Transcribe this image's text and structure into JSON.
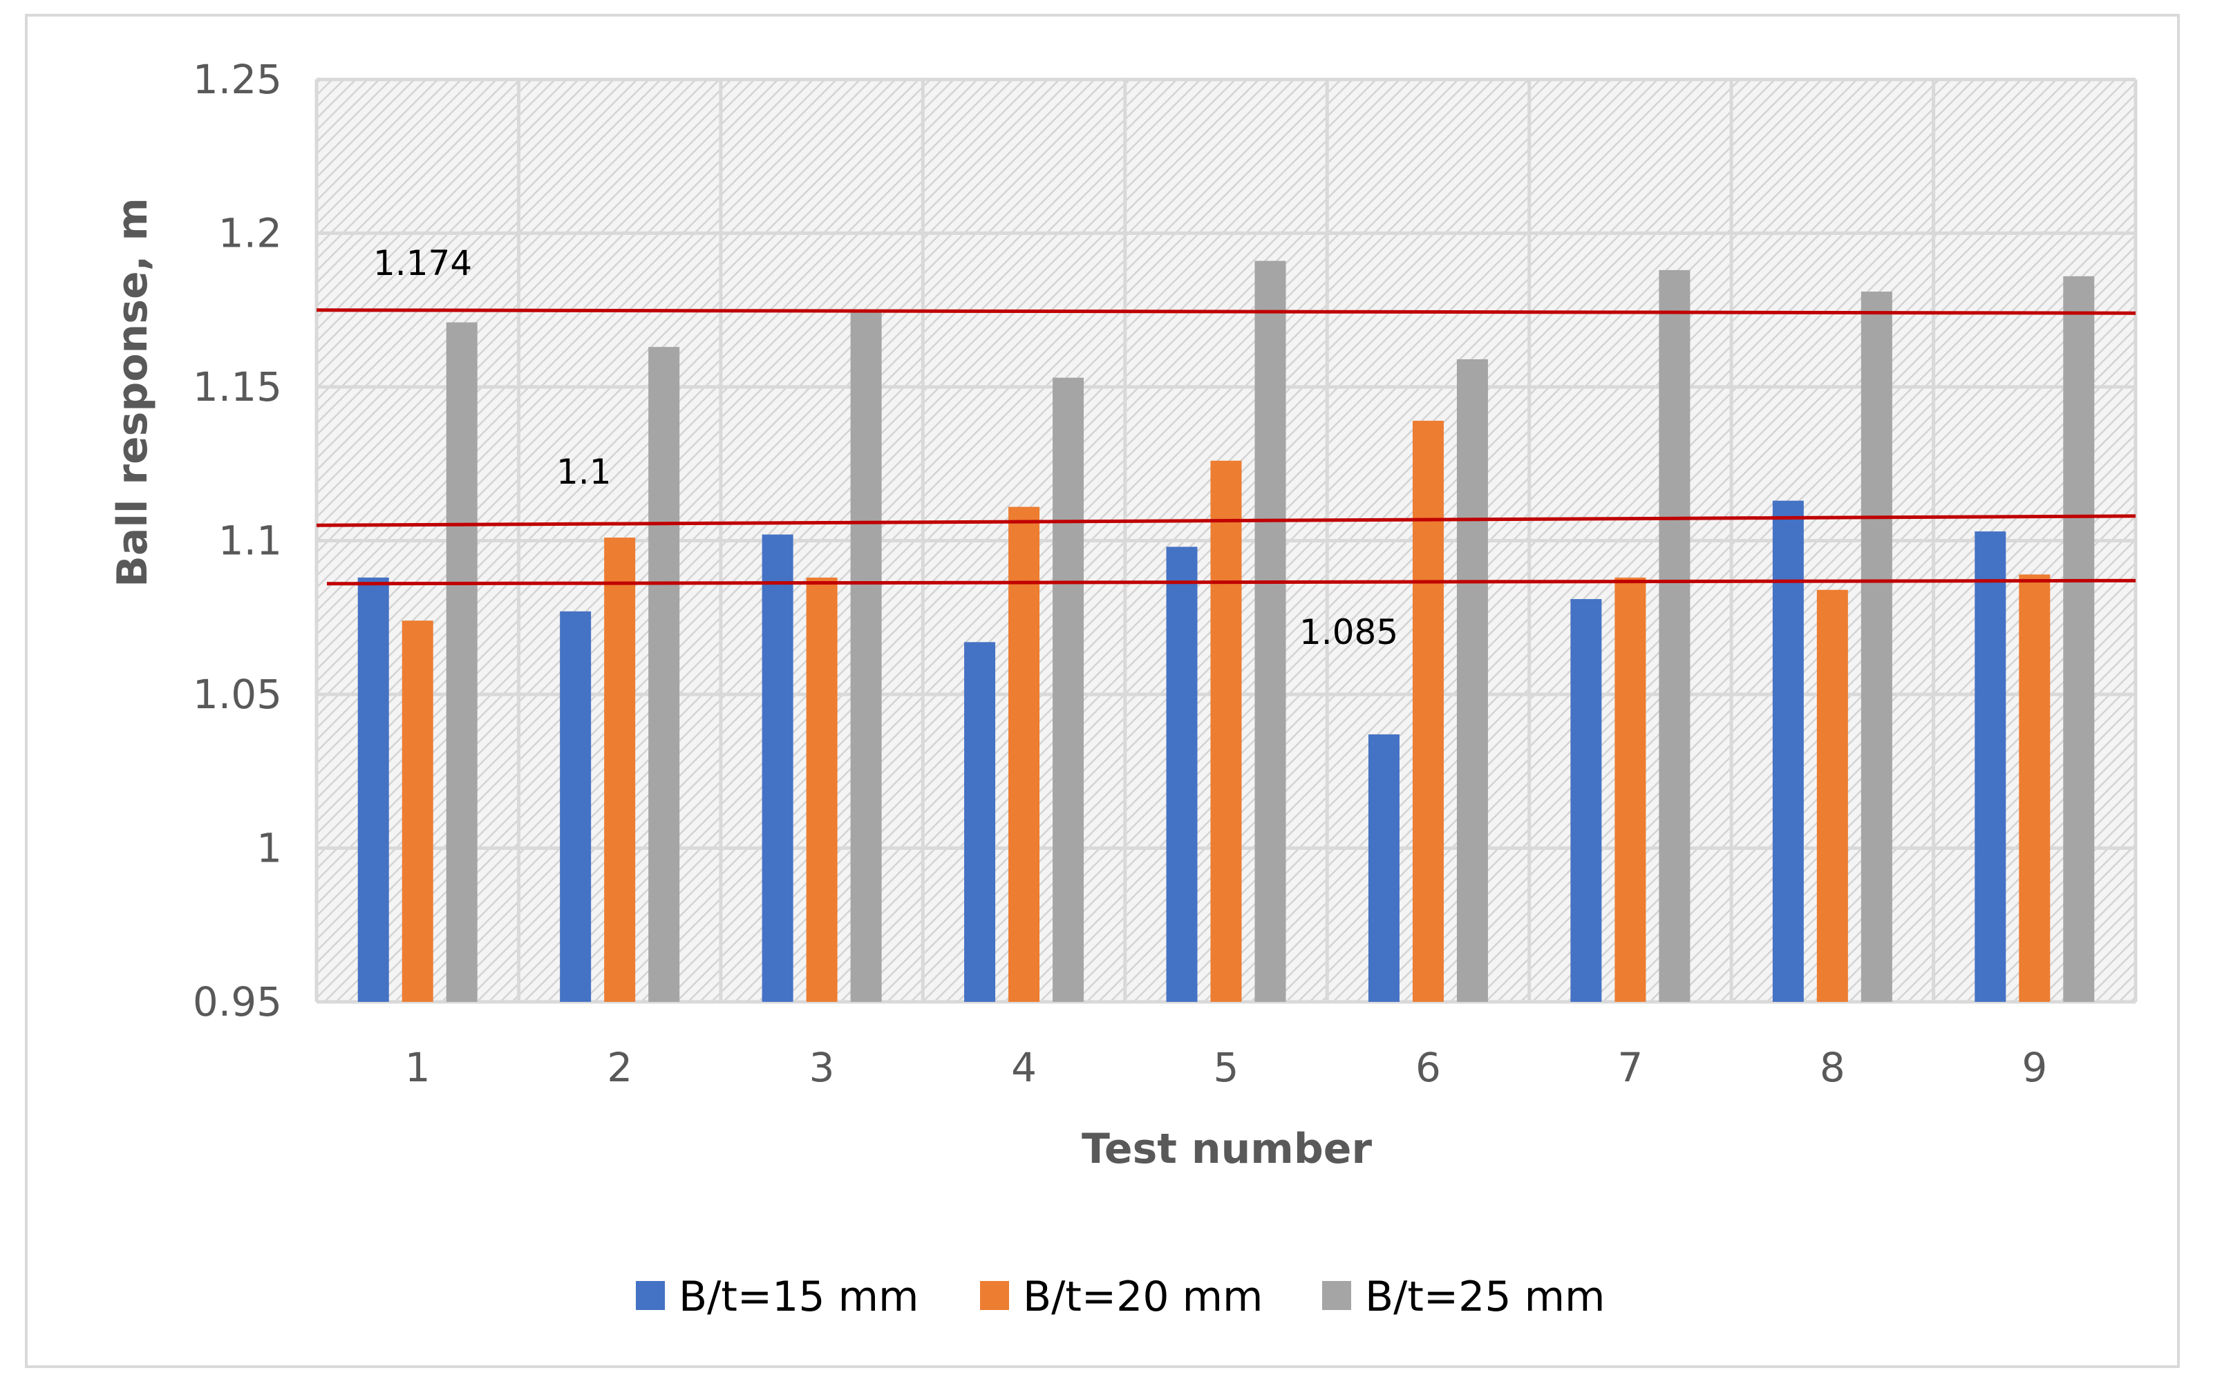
{
  "chart_data": {
    "type": "bar",
    "title": "",
    "xlabel": "Test number",
    "ylabel": "Ball response, m",
    "categories": [
      "1",
      "2",
      "3",
      "4",
      "5",
      "6",
      "7",
      "8",
      "9"
    ],
    "ylim": [
      0.95,
      1.25
    ],
    "yticks": [
      0.95,
      1,
      1.05,
      1.1,
      1.15,
      1.2,
      1.25
    ],
    "ytick_labels": [
      "0.95",
      "1",
      "1.05",
      "1.1",
      "1.15",
      "1.2",
      "1.25"
    ],
    "grid": true,
    "legend_position": "bottom",
    "series": [
      {
        "name": "B/t=15 mm",
        "color": "#4472c4",
        "values": [
          1.088,
          1.077,
          1.102,
          1.067,
          1.098,
          1.037,
          1.081,
          1.113,
          1.103
        ]
      },
      {
        "name": "B/t=20 mm",
        "color": "#ed7d31",
        "values": [
          1.074,
          1.101,
          1.088,
          1.111,
          1.126,
          1.139,
          1.088,
          1.084,
          1.089
        ]
      },
      {
        "name": "B/t=25 mm",
        "color": "#a5a5a5",
        "values": [
          1.171,
          1.163,
          1.175,
          1.153,
          1.191,
          1.159,
          1.188,
          1.181,
          1.186
        ]
      }
    ],
    "reference_lines": [
      {
        "label": "1.174",
        "y_start": 1.175,
        "y_end": 1.174,
        "color": "#c00000"
      },
      {
        "label": "1.1",
        "y_start": 1.105,
        "y_end": 1.108,
        "color": "#c00000"
      },
      {
        "label": "1.085",
        "y_start": 1.086,
        "y_end": 1.087,
        "color": "#c00000"
      }
    ]
  }
}
